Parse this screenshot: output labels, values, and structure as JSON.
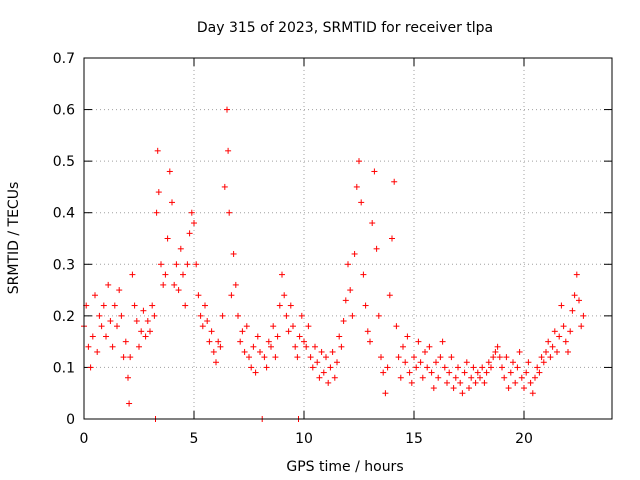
{
  "chart_data": {
    "type": "scatter",
    "title": "Day 315 of 2023, SRMTID for receiver tlpa",
    "xlabel": "GPS time / hours",
    "ylabel": "SRMTID / TECUs",
    "xlim": [
      0,
      24
    ],
    "ylim": [
      0,
      0.7
    ],
    "xticks": [
      0,
      5,
      10,
      15,
      20
    ],
    "yticks": [
      0,
      0.1,
      0.2,
      0.3,
      0.4,
      0.5,
      0.6,
      0.7
    ],
    "grid": true,
    "marker": "+",
    "color": "#ff0000",
    "series": [
      {
        "name": "SRMTID",
        "points": [
          [
            0.0,
            0.18
          ],
          [
            0.1,
            0.22
          ],
          [
            0.2,
            0.14
          ],
          [
            0.3,
            0.1
          ],
          [
            0.4,
            0.16
          ],
          [
            0.5,
            0.24
          ],
          [
            0.6,
            0.13
          ],
          [
            0.7,
            0.2
          ],
          [
            0.8,
            0.18
          ],
          [
            0.9,
            0.22
          ],
          [
            1.0,
            0.16
          ],
          [
            1.1,
            0.26
          ],
          [
            1.2,
            0.19
          ],
          [
            1.3,
            0.14
          ],
          [
            1.4,
            0.22
          ],
          [
            1.5,
            0.18
          ],
          [
            1.6,
            0.25
          ],
          [
            1.7,
            0.2
          ],
          [
            1.8,
            0.12
          ],
          [
            1.9,
            0.15
          ],
          [
            2.0,
            0.08
          ],
          [
            2.05,
            0.03
          ],
          [
            2.1,
            0.12
          ],
          [
            2.2,
            0.28
          ],
          [
            2.3,
            0.22
          ],
          [
            2.4,
            0.19
          ],
          [
            2.5,
            0.14
          ],
          [
            2.6,
            0.17
          ],
          [
            2.7,
            0.21
          ],
          [
            2.8,
            0.16
          ],
          [
            2.9,
            0.19
          ],
          [
            3.0,
            0.17
          ],
          [
            3.1,
            0.22
          ],
          [
            3.2,
            0.2
          ],
          [
            3.25,
            0.0
          ],
          [
            3.3,
            0.4
          ],
          [
            3.35,
            0.52
          ],
          [
            3.4,
            0.44
          ],
          [
            3.5,
            0.3
          ],
          [
            3.6,
            0.26
          ],
          [
            3.7,
            0.28
          ],
          [
            3.8,
            0.35
          ],
          [
            3.9,
            0.48
          ],
          [
            4.0,
            0.42
          ],
          [
            4.1,
            0.26
          ],
          [
            4.2,
            0.3
          ],
          [
            4.3,
            0.25
          ],
          [
            4.4,
            0.33
          ],
          [
            4.5,
            0.28
          ],
          [
            4.6,
            0.22
          ],
          [
            4.7,
            0.3
          ],
          [
            4.8,
            0.36
          ],
          [
            4.9,
            0.4
          ],
          [
            5.0,
            0.38
          ],
          [
            5.1,
            0.3
          ],
          [
            5.2,
            0.24
          ],
          [
            5.3,
            0.2
          ],
          [
            5.4,
            0.18
          ],
          [
            5.5,
            0.22
          ],
          [
            5.6,
            0.19
          ],
          [
            5.7,
            0.15
          ],
          [
            5.8,
            0.17
          ],
          [
            5.9,
            0.13
          ],
          [
            6.0,
            0.11
          ],
          [
            6.1,
            0.15
          ],
          [
            6.2,
            0.14
          ],
          [
            6.3,
            0.2
          ],
          [
            6.4,
            0.45
          ],
          [
            6.5,
            0.6
          ],
          [
            6.55,
            0.52
          ],
          [
            6.6,
            0.4
          ],
          [
            6.7,
            0.24
          ],
          [
            6.8,
            0.32
          ],
          [
            6.9,
            0.26
          ],
          [
            7.0,
            0.2
          ],
          [
            7.1,
            0.15
          ],
          [
            7.2,
            0.17
          ],
          [
            7.3,
            0.13
          ],
          [
            7.4,
            0.18
          ],
          [
            7.5,
            0.12
          ],
          [
            7.6,
            0.1
          ],
          [
            7.7,
            0.14
          ],
          [
            7.8,
            0.09
          ],
          [
            7.9,
            0.16
          ],
          [
            8.0,
            0.13
          ],
          [
            8.1,
            0.0
          ],
          [
            8.2,
            0.12
          ],
          [
            8.3,
            0.1
          ],
          [
            8.4,
            0.15
          ],
          [
            8.5,
            0.14
          ],
          [
            8.6,
            0.18
          ],
          [
            8.7,
            0.12
          ],
          [
            8.8,
            0.16
          ],
          [
            8.9,
            0.22
          ],
          [
            9.0,
            0.28
          ],
          [
            9.1,
            0.24
          ],
          [
            9.2,
            0.2
          ],
          [
            9.3,
            0.17
          ],
          [
            9.4,
            0.22
          ],
          [
            9.5,
            0.18
          ],
          [
            9.6,
            0.14
          ],
          [
            9.7,
            0.12
          ],
          [
            9.75,
            0.0
          ],
          [
            9.8,
            0.16
          ],
          [
            9.9,
            0.2
          ],
          [
            10.0,
            0.15
          ],
          [
            10.1,
            0.14
          ],
          [
            10.2,
            0.18
          ],
          [
            10.3,
            0.12
          ],
          [
            10.4,
            0.1
          ],
          [
            10.5,
            0.14
          ],
          [
            10.6,
            0.11
          ],
          [
            10.7,
            0.08
          ],
          [
            10.8,
            0.13
          ],
          [
            10.9,
            0.09
          ],
          [
            11.0,
            0.12
          ],
          [
            11.1,
            0.07
          ],
          [
            11.2,
            0.1
          ],
          [
            11.3,
            0.13
          ],
          [
            11.4,
            0.08
          ],
          [
            11.5,
            0.11
          ],
          [
            11.6,
            0.16
          ],
          [
            11.7,
            0.14
          ],
          [
            11.8,
            0.19
          ],
          [
            11.9,
            0.23
          ],
          [
            12.0,
            0.3
          ],
          [
            12.1,
            0.25
          ],
          [
            12.2,
            0.2
          ],
          [
            12.3,
            0.32
          ],
          [
            12.4,
            0.45
          ],
          [
            12.5,
            0.5
          ],
          [
            12.6,
            0.42
          ],
          [
            12.7,
            0.28
          ],
          [
            12.8,
            0.22
          ],
          [
            12.9,
            0.17
          ],
          [
            13.0,
            0.15
          ],
          [
            13.1,
            0.38
          ],
          [
            13.2,
            0.48
          ],
          [
            13.3,
            0.33
          ],
          [
            13.4,
            0.2
          ],
          [
            13.5,
            0.12
          ],
          [
            13.6,
            0.09
          ],
          [
            13.7,
            0.05
          ],
          [
            13.8,
            0.1
          ],
          [
            13.9,
            0.24
          ],
          [
            14.0,
            0.35
          ],
          [
            14.1,
            0.46
          ],
          [
            14.2,
            0.18
          ],
          [
            14.3,
            0.12
          ],
          [
            14.4,
            0.08
          ],
          [
            14.5,
            0.14
          ],
          [
            14.6,
            0.11
          ],
          [
            14.7,
            0.16
          ],
          [
            14.8,
            0.09
          ],
          [
            14.9,
            0.07
          ],
          [
            15.0,
            0.12
          ],
          [
            15.1,
            0.1
          ],
          [
            15.2,
            0.15
          ],
          [
            15.3,
            0.11
          ],
          [
            15.4,
            0.08
          ],
          [
            15.5,
            0.13
          ],
          [
            15.6,
            0.1
          ],
          [
            15.7,
            0.14
          ],
          [
            15.8,
            0.09
          ],
          [
            15.9,
            0.06
          ],
          [
            16.0,
            0.11
          ],
          [
            16.1,
            0.08
          ],
          [
            16.2,
            0.12
          ],
          [
            16.3,
            0.15
          ],
          [
            16.4,
            0.1
          ],
          [
            16.5,
            0.07
          ],
          [
            16.6,
            0.09
          ],
          [
            16.7,
            0.12
          ],
          [
            16.8,
            0.06
          ],
          [
            16.9,
            0.08
          ],
          [
            17.0,
            0.1
          ],
          [
            17.1,
            0.07
          ],
          [
            17.2,
            0.05
          ],
          [
            17.3,
            0.09
          ],
          [
            17.4,
            0.11
          ],
          [
            17.5,
            0.06
          ],
          [
            17.6,
            0.08
          ],
          [
            17.7,
            0.1
          ],
          [
            17.8,
            0.07
          ],
          [
            17.9,
            0.09
          ],
          [
            18.0,
            0.08
          ],
          [
            18.1,
            0.1
          ],
          [
            18.2,
            0.07
          ],
          [
            18.3,
            0.09
          ],
          [
            18.4,
            0.11
          ],
          [
            18.5,
            0.1
          ],
          [
            18.6,
            0.12
          ],
          [
            18.7,
            0.13
          ],
          [
            18.8,
            0.14
          ],
          [
            18.9,
            0.12
          ],
          [
            19.0,
            0.1
          ],
          [
            19.1,
            0.08
          ],
          [
            19.2,
            0.12
          ],
          [
            19.3,
            0.06
          ],
          [
            19.4,
            0.09
          ],
          [
            19.5,
            0.11
          ],
          [
            19.6,
            0.07
          ],
          [
            19.7,
            0.1
          ],
          [
            19.8,
            0.13
          ],
          [
            19.9,
            0.08
          ],
          [
            20.0,
            0.06
          ],
          [
            20.1,
            0.09
          ],
          [
            20.2,
            0.11
          ],
          [
            20.3,
            0.07
          ],
          [
            20.4,
            0.05
          ],
          [
            20.5,
            0.08
          ],
          [
            20.6,
            0.1
          ],
          [
            20.7,
            0.09
          ],
          [
            20.8,
            0.12
          ],
          [
            20.9,
            0.11
          ],
          [
            21.0,
            0.13
          ],
          [
            21.1,
            0.15
          ],
          [
            21.2,
            0.12
          ],
          [
            21.3,
            0.14
          ],
          [
            21.4,
            0.17
          ],
          [
            21.5,
            0.13
          ],
          [
            21.6,
            0.16
          ],
          [
            21.7,
            0.22
          ],
          [
            21.8,
            0.18
          ],
          [
            21.9,
            0.15
          ],
          [
            22.0,
            0.13
          ],
          [
            22.1,
            0.17
          ],
          [
            22.2,
            0.21
          ],
          [
            22.3,
            0.24
          ],
          [
            22.4,
            0.28
          ],
          [
            22.5,
            0.23
          ],
          [
            22.6,
            0.18
          ],
          [
            22.7,
            0.2
          ]
        ]
      }
    ]
  }
}
